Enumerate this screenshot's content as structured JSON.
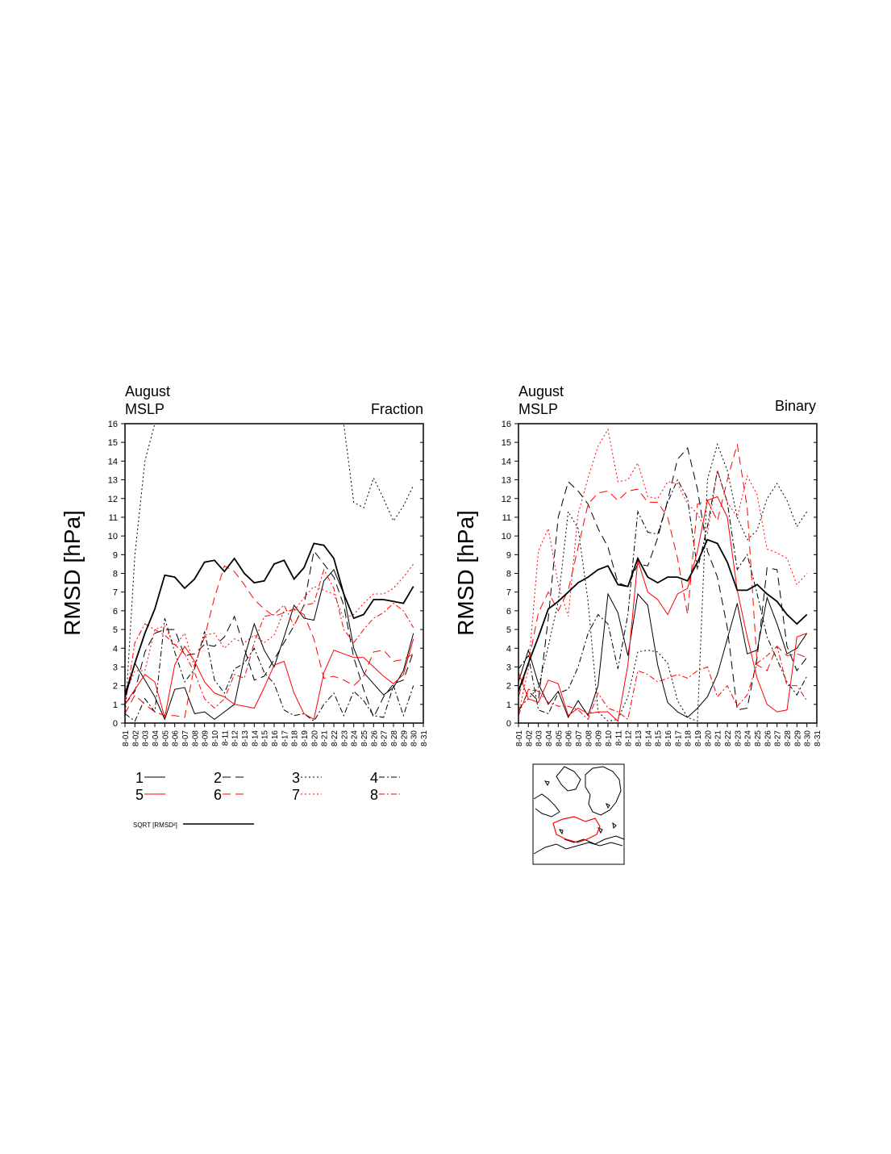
{
  "chart_data": [
    {
      "type": "line",
      "title_left_1": "August",
      "title_left_2": "MSLP",
      "title_right": "Fraction",
      "ylabel": "RMSD [hPa]",
      "xlabel": "",
      "ylim": [
        0,
        16
      ],
      "yticks": [
        "0",
        "1",
        "2",
        "3",
        "4",
        "5",
        "6",
        "7",
        "8",
        "9",
        "10",
        "11",
        "12",
        "13",
        "14",
        "15",
        "16"
      ],
      "xticks": [
        "8-01",
        "8-02",
        "8-03",
        "8-04",
        "8-05",
        "8-06",
        "8-07",
        "8-08",
        "8-09",
        "8-10",
        "8-11",
        "8-12",
        "8-13",
        "8-14",
        "8-15",
        "8-16",
        "8-17",
        "8-18",
        "8-19",
        "8-20",
        "8-21",
        "8-22",
        "8-23",
        "8-24",
        "8-25",
        "8-26",
        "8-27",
        "8-28",
        "8-29",
        "8-30",
        "8-31"
      ],
      "grid": false,
      "series": [
        {
          "name": "1",
          "color": "#000000",
          "dash": "solid",
          "width": 1,
          "values": [
            1.6,
            3.2,
            2.3,
            1.4,
            0.2,
            1.8,
            1.9,
            0.5,
            0.6,
            0.2,
            0.6,
            1.0,
            3.5,
            5.3,
            3.9,
            3.0,
            4.6,
            6.3,
            5.6,
            5.5,
            7.6,
            8.2,
            6.9,
            4.0,
            2.7,
            2.1,
            1.5,
            1.9,
            2.8,
            4.8
          ]
        },
        {
          "name": "2",
          "color": "#000000",
          "dash": "long",
          "width": 1,
          "values": [
            1.0,
            1.7,
            3.8,
            4.8,
            5.0,
            5.0,
            3.6,
            3.7,
            4.2,
            4.1,
            4.6,
            5.7,
            4.0,
            2.3,
            2.5,
            3.4,
            4.3,
            5.2,
            6.3,
            9.2,
            8.5,
            7.8,
            6.3,
            3.5,
            1.8,
            0.3,
            1.4,
            2.1,
            2.3,
            3.8
          ]
        },
        {
          "name": "3",
          "color": "#000000",
          "dash": "dot",
          "width": 1,
          "values": [
            0.2,
            9.0,
            14.0,
            16.0,
            16.0,
            16.0,
            16.0,
            16.0,
            16.0,
            16.0,
            16.0,
            16.0,
            16.0,
            16.0,
            16.0,
            16.0,
            16.0,
            16.0,
            16.0,
            16.0,
            16.0,
            16.0,
            16.0,
            11.8,
            11.5,
            13.1,
            12.0,
            10.8,
            11.6,
            12.7
          ]
        },
        {
          "name": "4",
          "color": "#000000",
          "dash": "dashdot",
          "width": 1,
          "values": [
            0.5,
            0.1,
            1.3,
            0.6,
            5.6,
            3.8,
            2.2,
            2.9,
            4.9,
            2.3,
            1.6,
            2.9,
            3.2,
            4.0,
            2.7,
            2.1,
            0.7,
            0.4,
            0.5,
            0.1,
            1.0,
            1.6,
            0.4,
            1.7,
            1.2,
            0.4,
            0.3,
            2.0,
            0.4,
            2.0
          ]
        },
        {
          "name": "5",
          "color": "#ff0000",
          "dash": "solid",
          "width": 1,
          "values": [
            1.0,
            1.8,
            2.6,
            2.2,
            0.3,
            3.1,
            4.1,
            3.3,
            2.2,
            1.6,
            1.4,
            1.0,
            0.9,
            0.8,
            1.9,
            3.1,
            3.3,
            1.6,
            0.5,
            0.2,
            2.7,
            3.9,
            3.7,
            3.5,
            3.5,
            3.0,
            2.5,
            2.1,
            2.6,
            4.5
          ]
        },
        {
          "name": "6",
          "color": "#ff0000",
          "dash": "long",
          "width": 1,
          "values": [
            0.5,
            1.5,
            1.0,
            0.6,
            0.4,
            0.4,
            0.3,
            3.1,
            4.6,
            6.7,
            8.4,
            8.1,
            7.4,
            6.6,
            6.1,
            5.7,
            5.9,
            6.1,
            5.8,
            4.5,
            2.4,
            2.5,
            2.3,
            2.0,
            2.5,
            3.8,
            3.9,
            3.3,
            3.4,
            3.7
          ]
        },
        {
          "name": "7",
          "color": "#ff0000",
          "dash": "dot",
          "width": 1,
          "values": [
            1.5,
            2.8,
            2.8,
            5.0,
            5.2,
            4.1,
            4.8,
            3.0,
            4.7,
            4.8,
            4.0,
            4.5,
            4.3,
            4.7,
            4.3,
            4.7,
            6.0,
            6.0,
            6.7,
            7.3,
            7.1,
            6.9,
            5.6,
            5.8,
            6.4,
            6.9,
            6.9,
            7.2,
            7.8,
            8.5
          ]
        },
        {
          "name": "8",
          "color": "#ff0000",
          "dash": "dashdot",
          "width": 1,
          "values": [
            0.9,
            4.3,
            5.3,
            5.0,
            4.7,
            4.2,
            3.7,
            2.7,
            1.3,
            0.8,
            1.3,
            2.6,
            2.4,
            4.3,
            5.7,
            5.8,
            6.3,
            5.2,
            6.3,
            6.4,
            8.2,
            7.2,
            5.0,
            4.3,
            5.0,
            5.6,
            5.9,
            6.4,
            6.0,
            5.1
          ]
        },
        {
          "name": "SQRT [RMSD²]",
          "color": "#000000",
          "dash": "solid",
          "width": 1.8,
          "values": [
            1.4,
            3.2,
            4.8,
            6.1,
            7.9,
            7.8,
            7.2,
            7.7,
            8.6,
            8.7,
            8.1,
            8.8,
            8.0,
            7.5,
            7.6,
            8.5,
            8.7,
            7.7,
            8.3,
            9.6,
            9.5,
            8.8,
            6.9,
            5.6,
            5.8,
            6.6,
            6.6,
            6.5,
            6.4,
            7.3
          ]
        }
      ]
    },
    {
      "type": "line",
      "title_left_1": "August",
      "title_left_2": "MSLP",
      "title_right": "Binary",
      "ylabel": "RMSD [hPa]",
      "xlabel": "",
      "ylim": [
        0,
        16
      ],
      "yticks": [
        "0",
        "1",
        "2",
        "3",
        "4",
        "5",
        "6",
        "7",
        "8",
        "9",
        "10",
        "11",
        "12",
        "13",
        "14",
        "15",
        "16"
      ],
      "xticks": [
        "8-01",
        "8-02",
        "8-03",
        "8-04",
        "8-05",
        "8-06",
        "8-07",
        "8-08",
        "8-09",
        "8-10",
        "8-11",
        "8-12",
        "8-13",
        "8-14",
        "8-15",
        "8-16",
        "8-17",
        "8-18",
        "8-19",
        "8-20",
        "8-21",
        "8-22",
        "8-23",
        "8-24",
        "8-25",
        "8-26",
        "8-27",
        "8-28",
        "8-29",
        "8-30",
        "8-31"
      ],
      "grid": false,
      "series": [
        {
          "name": "1",
          "color": "#000000",
          "dash": "solid",
          "width": 1,
          "values": [
            2.2,
            3.9,
            2.1,
            1.0,
            1.7,
            0.3,
            1.2,
            0.4,
            2.0,
            6.9,
            5.9,
            3.6,
            6.9,
            6.3,
            3.1,
            1.1,
            0.6,
            0.3,
            0.8,
            1.4,
            2.6,
            4.5,
            6.4,
            3.7,
            3.9,
            6.7,
            5.3,
            3.7,
            4.0,
            4.8
          ]
        },
        {
          "name": "2",
          "color": "#000000",
          "dash": "long",
          "width": 1,
          "values": [
            0.6,
            1.7,
            1.2,
            5.6,
            11.0,
            12.9,
            12.4,
            11.7,
            10.4,
            9.4,
            7.5,
            7.3,
            8.5,
            8.4,
            9.9,
            11.9,
            14.1,
            14.7,
            12.5,
            9.2,
            7.8,
            5.1,
            0.7,
            0.8,
            3.5,
            8.3,
            8.2,
            4.1,
            2.8,
            3.5
          ]
        },
        {
          "name": "3",
          "color": "#000000",
          "dash": "dot",
          "width": 1,
          "values": [
            0.8,
            1.3,
            1.9,
            4.1,
            6.5,
            11.3,
            10.4,
            6.5,
            0.6,
            0.1,
            0.2,
            1.4,
            3.8,
            3.9,
            3.8,
            3.2,
            1.2,
            0.3,
            0.1,
            13.0,
            14.9,
            13.5,
            11.0,
            9.8,
            10.3,
            12.0,
            12.8,
            11.9,
            10.5,
            11.3
          ]
        },
        {
          "name": "4",
          "color": "#000000",
          "dash": "dashdot",
          "width": 1,
          "values": [
            2.9,
            3.6,
            0.7,
            0.5,
            1.6,
            1.8,
            3.0,
            4.8,
            5.8,
            5.3,
            2.9,
            5.8,
            11.3,
            10.2,
            10.1,
            11.8,
            13.0,
            12.0,
            8.2,
            10.5,
            13.5,
            11.8,
            8.2,
            9.0,
            6.9,
            4.6,
            3.4,
            2.2,
            1.5,
            2.5
          ]
        },
        {
          "name": "5",
          "color": "#ff0000",
          "dash": "solid",
          "width": 1,
          "values": [
            2.7,
            1.3,
            1.1,
            2.3,
            2.1,
            0.4,
            0.8,
            0.5,
            0.6,
            0.6,
            0.1,
            3.1,
            8.7,
            7.0,
            6.6,
            5.8,
            6.9,
            7.2,
            9.2,
            11.9,
            12.1,
            11.0,
            7.1,
            4.6,
            2.4,
            1.0,
            0.6,
            0.7,
            4.6,
            4.8
          ]
        },
        {
          "name": "6",
          "color": "#ff0000",
          "dash": "long",
          "width": 1,
          "values": [
            1.4,
            3.2,
            5.9,
            7.0,
            6.0,
            7.1,
            9.4,
            11.7,
            12.3,
            12.4,
            11.9,
            12.4,
            12.5,
            11.8,
            11.8,
            11.0,
            8.8,
            5.8,
            11.7,
            11.9,
            10.8,
            13.0,
            14.9,
            11.5,
            3.1,
            2.8,
            4.1,
            3.6,
            3.7,
            3.5
          ]
        },
        {
          "name": "7",
          "color": "#ff0000",
          "dash": "dot",
          "width": 1,
          "values": [
            0.5,
            2.9,
            9.2,
            10.4,
            7.4,
            5.7,
            11.2,
            13.1,
            14.8,
            15.7,
            12.9,
            13.0,
            13.9,
            12.1,
            12.0,
            12.9,
            12.8,
            11.7,
            11.2,
            10.1,
            13.5,
            11.8,
            11.0,
            13.2,
            12.2,
            9.3,
            9.1,
            8.8,
            7.4,
            8.0
          ]
        },
        {
          "name": "8",
          "color": "#ff0000",
          "dash": "dashdot",
          "width": 1,
          "values": [
            0.4,
            1.8,
            1.7,
            1.1,
            0.9,
            0.9,
            0.7,
            0.2,
            1.6,
            0.8,
            0.6,
            0.2,
            2.8,
            2.6,
            2.2,
            2.4,
            2.6,
            2.4,
            2.8,
            3.0,
            1.4,
            2.0,
            0.9,
            1.5,
            3.2,
            3.6,
            4.1,
            2.0,
            2.0,
            1.2
          ]
        },
        {
          "name": "SQRT [RMSD²]",
          "color": "#000000",
          "dash": "solid",
          "width": 1.8,
          "values": [
            1.7,
            3.2,
            4.6,
            6.1,
            6.5,
            7.0,
            7.5,
            7.8,
            8.2,
            8.4,
            7.4,
            7.3,
            8.8,
            7.8,
            7.5,
            7.8,
            7.8,
            7.6,
            8.6,
            9.8,
            9.6,
            8.6,
            7.1,
            7.1,
            7.4,
            6.9,
            6.5,
            5.8,
            5.3,
            5.8
          ]
        }
      ]
    }
  ],
  "legend": {
    "items": [
      {
        "label": "1",
        "color": "#000000",
        "dash": "solid"
      },
      {
        "label": "2",
        "color": "#000000",
        "dash": "long"
      },
      {
        "label": "3",
        "color": "#000000",
        "dash": "dot"
      },
      {
        "label": "4",
        "color": "#000000",
        "dash": "dashdot"
      },
      {
        "label": "5",
        "color": "#ff0000",
        "dash": "solid"
      },
      {
        "label": "6",
        "color": "#ff0000",
        "dash": "long"
      },
      {
        "label": "7",
        "color": "#ff0000",
        "dash": "dot"
      },
      {
        "label": "8",
        "color": "#ff0000",
        "dash": "dashdot"
      }
    ],
    "sqrt_label": "SQRT [RMSD²]"
  },
  "inset_map": {
    "region_color": "#ff0000",
    "coast_color": "#000000"
  }
}
